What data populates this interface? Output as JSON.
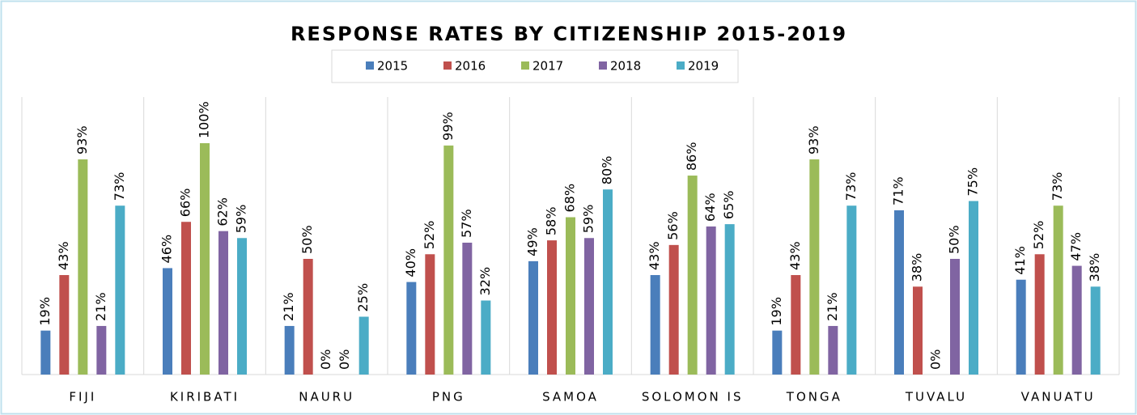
{
  "chart_data": {
    "type": "bar",
    "title": "RESPONSE RATES BY CITIZENSHIP 2015-2019",
    "categories": [
      "FIJI",
      "KIRIBATI",
      "NAURU",
      "PNG",
      "SAMOA",
      "SOLOMON IS",
      "TONGA",
      "TUVALU",
      "VANUATU"
    ],
    "series": [
      {
        "name": "2015",
        "color": "#4a7ebb",
        "values": [
          19,
          46,
          21,
          40,
          49,
          43,
          19,
          71,
          41
        ],
        "value_labels": [
          "19%",
          "46%",
          "21%",
          "40%",
          "49%",
          "43%",
          "19%",
          "71%",
          "41%"
        ]
      },
      {
        "name": "2016",
        "color": "#c0504d",
        "values": [
          43,
          66,
          50,
          52,
          58,
          56,
          43,
          38,
          52
        ],
        "value_labels": [
          "43%",
          "66%",
          "50%",
          "52%",
          "58%",
          "56%",
          "43%",
          "38%",
          "52%"
        ]
      },
      {
        "name": "2017",
        "color": "#9bbb59",
        "values": [
          93,
          100,
          0,
          99,
          68,
          86,
          93,
          0,
          73
        ],
        "value_labels": [
          "93%",
          "100%",
          "0%",
          "99%",
          "68%",
          "86%",
          "93%",
          "0%",
          "73%"
        ]
      },
      {
        "name": "2018",
        "color": "#8064a2",
        "values": [
          21,
          62,
          0,
          57,
          59,
          64,
          21,
          50,
          47
        ],
        "value_labels": [
          "21%",
          "62%",
          "0%",
          "57%",
          "59%",
          "64%",
          "21%",
          "50%",
          "47%"
        ]
      },
      {
        "name": "2019",
        "color": "#4bacc6",
        "values": [
          73,
          59,
          25,
          32,
          80,
          65,
          73,
          75,
          38
        ],
        "value_labels": [
          "73%",
          "59%",
          "25%",
          "32%",
          "80%",
          "65%",
          "73%",
          "75%",
          "38%"
        ]
      }
    ]
  }
}
